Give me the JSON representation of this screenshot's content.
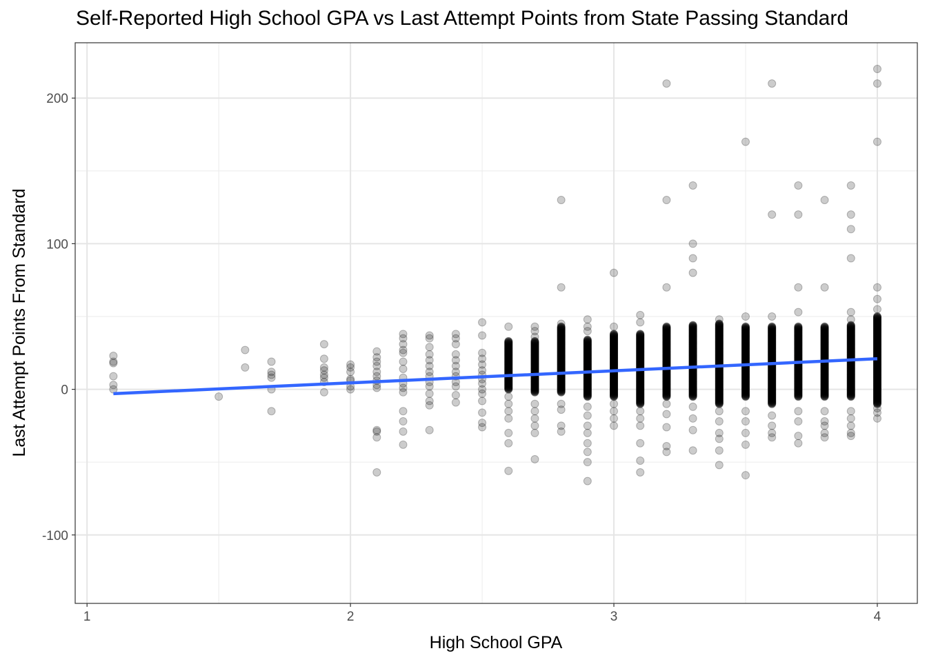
{
  "chart_data": {
    "type": "scatter",
    "title": "Self-Reported High School GPA vs Last Attempt Points from State Passing Standard",
    "xlabel": "High School GPA",
    "ylabel": "Last Attempt Points From Standard",
    "xlim": [
      0.955,
      4.152
    ],
    "ylim": [
      -147,
      238
    ],
    "x_ticks": [
      "1",
      "2",
      "3",
      "4"
    ],
    "y_ticks": [
      "-100",
      "0",
      "100",
      "200"
    ],
    "grid": true,
    "point_color": "#000000",
    "point_alpha": 0.2,
    "columns": [
      {
        "x": 1.1,
        "y": [
          23,
          19,
          18,
          9,
          3,
          0
        ]
      },
      {
        "x": 1.5,
        "y": [
          -5
        ]
      },
      {
        "x": 1.6,
        "y": [
          27,
          15
        ]
      },
      {
        "x": 1.7,
        "y": [
          19,
          12,
          10,
          8,
          0,
          -15
        ]
      },
      {
        "x": 1.9,
        "y": [
          31,
          21,
          15,
          13,
          10,
          8,
          5,
          -2
        ]
      },
      {
        "x": 2.0,
        "y": [
          17,
          15,
          12,
          7,
          6,
          2,
          0
        ]
      },
      {
        "x": 2.1,
        "y": [
          26,
          22,
          19,
          16,
          12,
          9,
          6,
          3,
          1,
          -28,
          -29,
          -33,
          -57
        ]
      },
      {
        "x": 2.2,
        "y": [
          38,
          35,
          31,
          27,
          25,
          19,
          14,
          8,
          4,
          1,
          -2,
          -15,
          -22,
          -29,
          -38
        ]
      },
      {
        "x": 2.3,
        "y": [
          37,
          35,
          29,
          24,
          20,
          16,
          12,
          9,
          5,
          2,
          -3,
          -8,
          -11,
          -28
        ]
      },
      {
        "x": 2.4,
        "y": [
          38,
          35,
          31,
          24,
          20,
          16,
          12,
          9,
          5,
          2,
          -4,
          -9
        ]
      },
      {
        "x": 2.5,
        "y": [
          46,
          37,
          25,
          21,
          17,
          13,
          10,
          7,
          4,
          0,
          -3,
          -8,
          -16,
          -23,
          -26
        ]
      },
      {
        "x": 2.6,
        "y": [
          43,
          -5,
          -10,
          -15,
          -20,
          -30,
          -37,
          -56
        ],
        "dense_range": [
          0,
          33
        ]
      },
      {
        "x": 2.7,
        "y": [
          43,
          40,
          36,
          -10,
          -15,
          -20,
          -25,
          -30,
          -48
        ],
        "dense_range": [
          -2,
          33
        ]
      },
      {
        "x": 2.8,
        "y": [
          130,
          70,
          45,
          -10,
          -14,
          -25,
          -29
        ],
        "dense_range": [
          -2,
          43
        ]
      },
      {
        "x": 2.9,
        "y": [
          48,
          43,
          40,
          -12,
          -18,
          -25,
          -30,
          -37,
          -43,
          -50,
          -63
        ],
        "dense_range": [
          -5,
          34
        ]
      },
      {
        "x": 3.0,
        "y": [
          80,
          43,
          -10,
          -15,
          -20,
          -25
        ],
        "dense_range": [
          -5,
          38
        ]
      },
      {
        "x": 3.1,
        "y": [
          51,
          46,
          -15,
          -20,
          -25,
          -37,
          -49,
          -57
        ],
        "dense_range": [
          -10,
          38
        ]
      },
      {
        "x": 3.2,
        "y": [
          210,
          130,
          70,
          -10,
          -17,
          -26,
          -39,
          -43
        ],
        "dense_range": [
          -5,
          43
        ]
      },
      {
        "x": 3.3,
        "y": [
          140,
          100,
          90,
          80,
          -12,
          -20,
          -28,
          -42
        ],
        "dense_range": [
          -5,
          44
        ]
      },
      {
        "x": 3.4,
        "y": [
          48,
          -15,
          -22,
          -30,
          -34,
          -42,
          -52
        ],
        "dense_range": [
          -10,
          45
        ]
      },
      {
        "x": 3.5,
        "y": [
          170,
          50,
          -15,
          -22,
          -30,
          -38,
          -59
        ],
        "dense_range": [
          -5,
          43
        ]
      },
      {
        "x": 3.6,
        "y": [
          210,
          120,
          50,
          -18,
          -25,
          -30,
          -33
        ],
        "dense_range": [
          -10,
          43
        ]
      },
      {
        "x": 3.7,
        "y": [
          140,
          120,
          70,
          53,
          -15,
          -22,
          -32,
          -37
        ],
        "dense_range": [
          -5,
          43
        ]
      },
      {
        "x": 3.8,
        "y": [
          130,
          70,
          -15,
          -22,
          -25,
          -30,
          -33
        ],
        "dense_range": [
          -5,
          43
        ]
      },
      {
        "x": 3.9,
        "y": [
          140,
          120,
          110,
          90,
          53,
          48,
          -15,
          -20,
          -25,
          -30,
          -32
        ],
        "dense_range": [
          -5,
          44
        ]
      },
      {
        "x": 4.0,
        "y": [
          220,
          210,
          170,
          70,
          62,
          55,
          -13,
          -16,
          -20
        ],
        "dense_range": [
          -10,
          50
        ]
      }
    ],
    "trend_line": {
      "type": "linear",
      "color": "#3366FF",
      "x": [
        1.1,
        4.0
      ],
      "y": [
        -3,
        21
      ]
    }
  }
}
